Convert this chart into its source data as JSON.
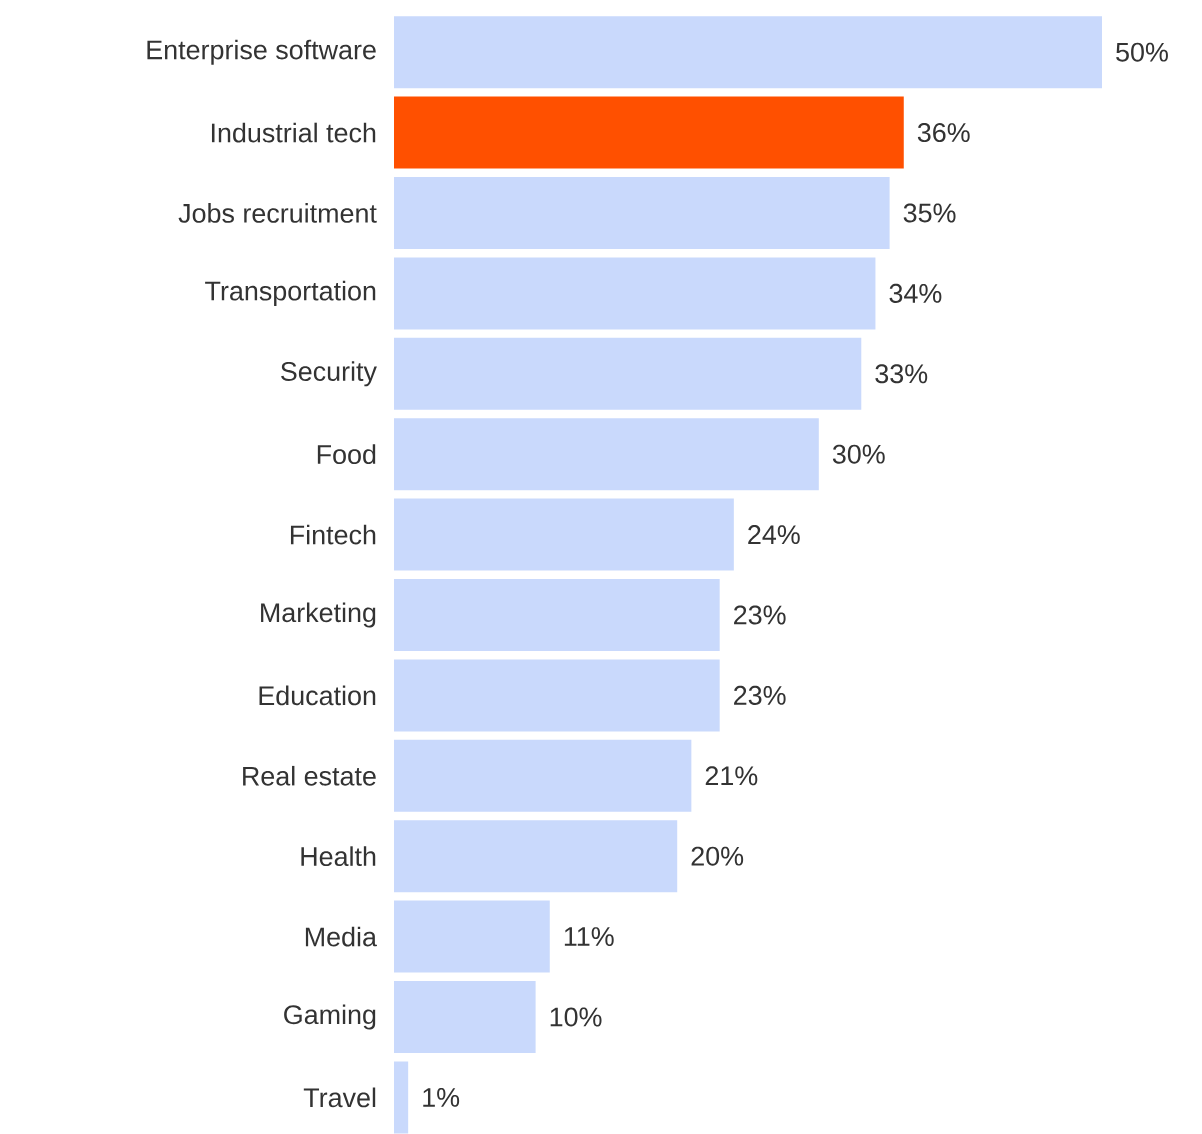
{
  "chart_data": {
    "type": "bar",
    "orientation": "horizontal",
    "categories": [
      "Enterprise software",
      "Industrial tech",
      "Jobs recruitment",
      "Transportation",
      "Security",
      "Food",
      "Fintech",
      "Marketing",
      "Education",
      "Real estate",
      "Health",
      "Media",
      "Gaming",
      "Travel"
    ],
    "values": [
      50,
      36,
      35,
      34,
      33,
      30,
      24,
      23,
      23,
      21,
      20,
      11,
      10,
      1
    ],
    "colors": [
      "#c9d9fc",
      "#ff5000",
      "#c9d9fc",
      "#c9d9fc",
      "#c9d9fc",
      "#c9d9fc",
      "#c9d9fc",
      "#c9d9fc",
      "#c9d9fc",
      "#c9d9fc",
      "#c9d9fc",
      "#c9d9fc",
      "#c9d9fc",
      "#c9d9fc"
    ],
    "value_labels": [
      "50%",
      "36%",
      "35%",
      "34%",
      "33%",
      "30%",
      "24%",
      "23%",
      "23%",
      "21%",
      "20%",
      "11%",
      "10%",
      "1%"
    ]
  }
}
